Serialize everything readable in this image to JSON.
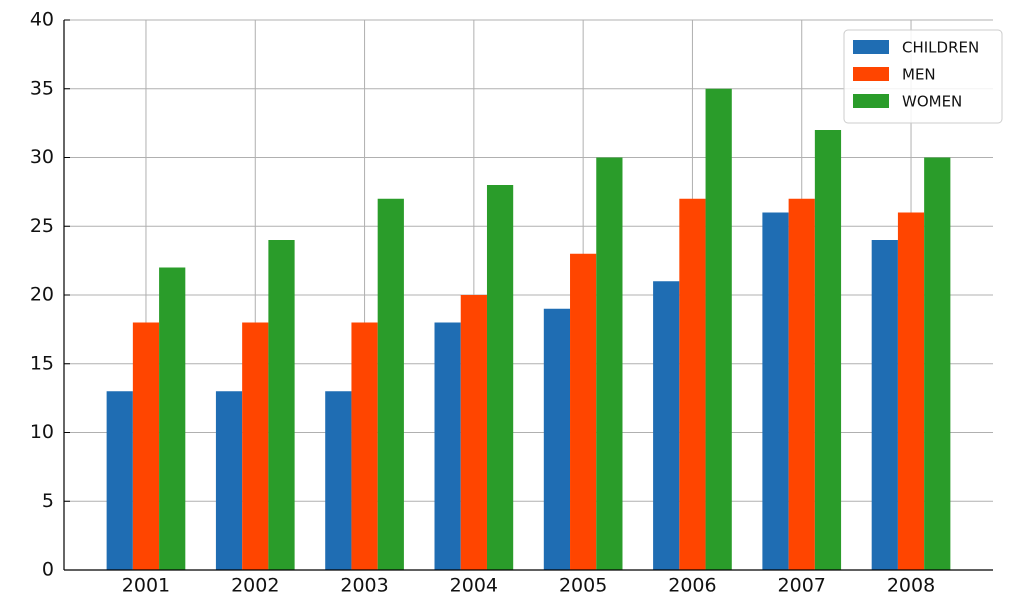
{
  "chart_data": {
    "type": "bar",
    "categories": [
      "2001",
      "2002",
      "2003",
      "2004",
      "2005",
      "2006",
      "2007",
      "2008"
    ],
    "series": [
      {
        "name": "CHILDREN",
        "color": "#1f6db3",
        "values": [
          13,
          13,
          13,
          18,
          19,
          21,
          26,
          24
        ]
      },
      {
        "name": "MEN",
        "color": "#ff4500",
        "values": [
          18,
          18,
          18,
          20,
          23,
          27,
          27,
          26
        ]
      },
      {
        "name": "WOMEN",
        "color": "#2a9c2a",
        "values": [
          22,
          24,
          27,
          28,
          30,
          35,
          32,
          30
        ]
      }
    ],
    "ylim": [
      0,
      40
    ],
    "yticks": [
      0,
      5,
      10,
      15,
      20,
      25,
      30,
      35,
      40
    ],
    "grid": true,
    "legend": "upper right"
  }
}
